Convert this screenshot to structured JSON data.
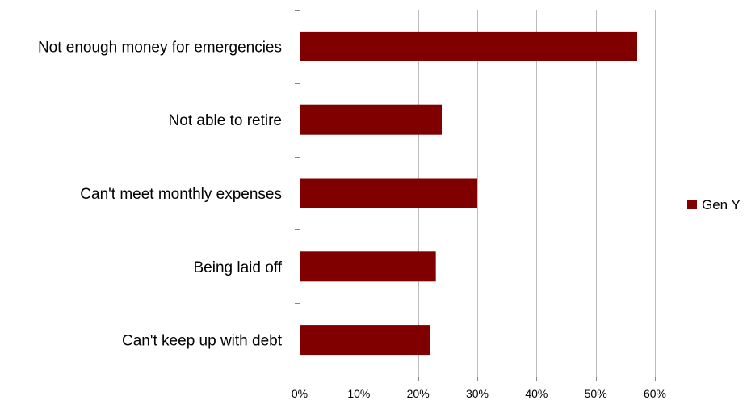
{
  "chart_data": {
    "type": "bar",
    "orientation": "horizontal",
    "categories": [
      "Not enough money for emergencies",
      "Not able to retire",
      "Can't meet monthly expenses",
      "Being laid off",
      "Can't keep up with debt"
    ],
    "series": [
      {
        "name": "Gen Y",
        "color": "#800000",
        "values": [
          0.57,
          0.24,
          0.3,
          0.23,
          0.22
        ]
      }
    ],
    "xlim": [
      0,
      0.6
    ],
    "xticks": [
      0,
      0.1,
      0.2,
      0.3,
      0.4,
      0.5,
      0.6
    ],
    "xtick_labels": [
      "0%",
      "10%",
      "20%",
      "30%",
      "40%",
      "50%",
      "60%"
    ],
    "grid": true,
    "legend_position": "right"
  }
}
